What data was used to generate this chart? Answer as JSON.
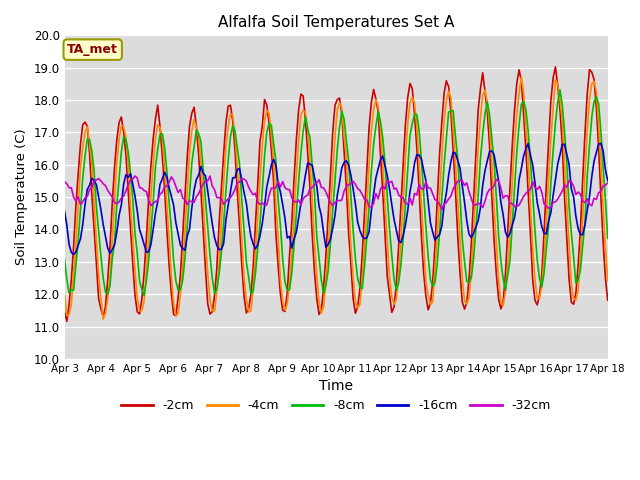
{
  "title": "Alfalfa Soil Temperatures Set A",
  "xlabel": "Time",
  "ylabel": "Soil Temperature (C)",
  "ylim": [
    10.0,
    20.0
  ],
  "yticks": [
    10.0,
    11.0,
    12.0,
    13.0,
    14.0,
    15.0,
    16.0,
    17.0,
    18.0,
    19.0,
    20.0
  ],
  "annotation": "TA_met",
  "bg_color": "#dcdcdc",
  "plot_bg": "#dcdcdc",
  "series": {
    "-2cm": {
      "color": "#cc0000",
      "lw": 1.2
    },
    "-4cm": {
      "color": "#ff8800",
      "lw": 1.2
    },
    "-8cm": {
      "color": "#00bb00",
      "lw": 1.2
    },
    "-16cm": {
      "color": "#0000cc",
      "lw": 1.2
    },
    "-32cm": {
      "color": "#cc00cc",
      "lw": 1.2
    }
  },
  "x_tick_labels": [
    "Apr 3",
    "Apr 4",
    "Apr 5",
    "Apr 6",
    "Apr 7",
    "Apr 8",
    "Apr 9",
    "Apr 10",
    "Apr 11",
    "Apr 12",
    "Apr 13",
    "Apr 14",
    "Apr 15",
    "Apr 16",
    "Apr 17",
    "Apr 18"
  ]
}
